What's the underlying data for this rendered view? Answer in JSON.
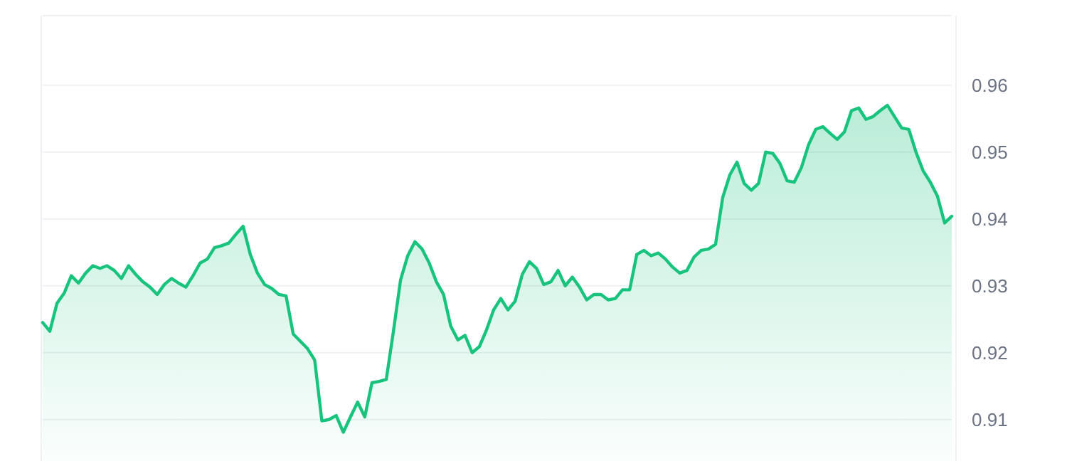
{
  "chart_data": {
    "type": "area",
    "categories": [
      null,
      null,
      null,
      null,
      null,
      null,
      null,
      null,
      null,
      null,
      null,
      null,
      null,
      null,
      null,
      null,
      null,
      null,
      null,
      null,
      null,
      null,
      null,
      null,
      null,
      null,
      null,
      null,
      null,
      null,
      null,
      null,
      null,
      null,
      null,
      null,
      null,
      null,
      null,
      null,
      null,
      null,
      null,
      null,
      null,
      null,
      null,
      null,
      null,
      null,
      null,
      null,
      null,
      null,
      null,
      null,
      null,
      null,
      null,
      null,
      null,
      null,
      null,
      null,
      null,
      null,
      null,
      null,
      null,
      null,
      null,
      null,
      null,
      null,
      null,
      null,
      null,
      null,
      null,
      null,
      null,
      null,
      null,
      null,
      null,
      null,
      null,
      null,
      null,
      null,
      null,
      null,
      null,
      null,
      null,
      null,
      null,
      null,
      null,
      null,
      null,
      null,
      null,
      null,
      null,
      null,
      null,
      null,
      null,
      null,
      null,
      null,
      null,
      null,
      null,
      null,
      null,
      null,
      null,
      null,
      null,
      null,
      null,
      null,
      null,
      null,
      null,
      null
    ],
    "series": [
      {
        "color": "#18c37e",
        "values": [
          0.9245,
          0.9232,
          0.9274,
          0.9289,
          0.9315,
          0.9304,
          0.9319,
          0.933,
          0.9326,
          0.933,
          0.9323,
          0.9311,
          0.933,
          0.9317,
          0.9306,
          0.9298,
          0.9287,
          0.9302,
          0.9311,
          0.9304,
          0.9298,
          0.9315,
          0.9334,
          0.934,
          0.9357,
          0.936,
          0.9364,
          0.9377,
          0.9389,
          0.9347,
          0.9319,
          0.9302,
          0.9296,
          0.9287,
          0.9285,
          0.9228,
          0.9217,
          0.9206,
          0.9189,
          0.9098,
          0.91,
          0.9106,
          0.9081,
          0.9104,
          0.9126,
          0.9104,
          0.9155,
          0.9157,
          0.916,
          0.9232,
          0.9309,
          0.9345,
          0.9366,
          0.9355,
          0.9334,
          0.9306,
          0.9287,
          0.924,
          0.9219,
          0.9226,
          0.92,
          0.9209,
          0.9234,
          0.9264,
          0.9281,
          0.9264,
          0.9277,
          0.9317,
          0.9336,
          0.9326,
          0.9302,
          0.9306,
          0.9323,
          0.93,
          0.9313,
          0.9298,
          0.9279,
          0.9287,
          0.9287,
          0.9279,
          0.9281,
          0.9294,
          0.9294,
          0.9347,
          0.9353,
          0.9345,
          0.9349,
          0.934,
          0.9328,
          0.9319,
          0.9323,
          0.9343,
          0.9353,
          0.9355,
          0.9362,
          0.9432,
          0.9466,
          0.9485,
          0.9453,
          0.9443,
          0.9453,
          0.95,
          0.9498,
          0.9483,
          0.9457,
          0.9455,
          0.9477,
          0.9511,
          0.9534,
          0.9538,
          0.9528,
          0.9519,
          0.953,
          0.9562,
          0.9566,
          0.9549,
          0.9553,
          0.9562,
          0.957,
          0.9553,
          0.9536,
          0.9534,
          0.95,
          0.9472,
          0.9455,
          0.9434,
          0.9394,
          0.9404
        ]
      }
    ],
    "ylim": [
      0.9038,
      0.9704
    ],
    "yticks": [
      0.91,
      0.92,
      0.93,
      0.94,
      0.95,
      0.96
    ],
    "grid": "y",
    "tick_labels": "y"
  }
}
